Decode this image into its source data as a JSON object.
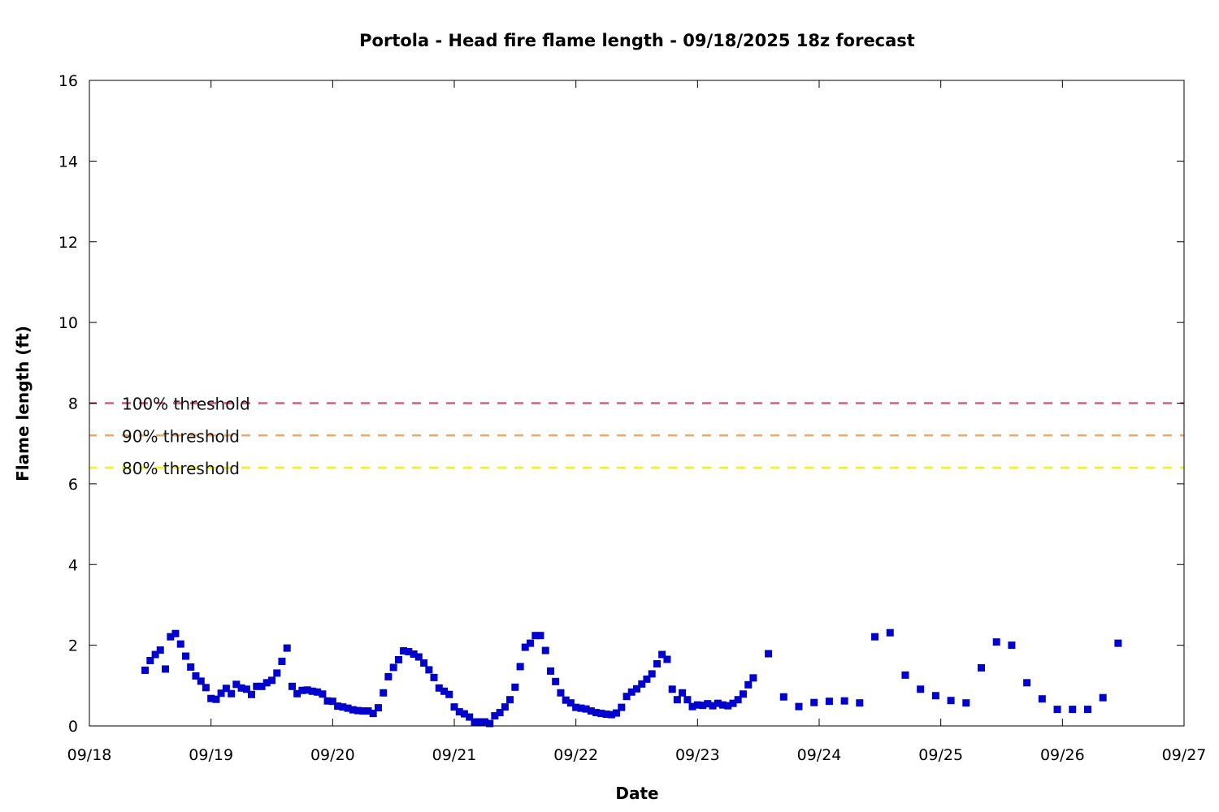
{
  "chart_data": {
    "type": "scatter",
    "title": "Portola - Head fire flame length - 09/18/2025 18z forecast",
    "xlabel": "Date",
    "ylabel": "Flame length (ft)",
    "x_unit": "days",
    "xlim": [
      0,
      9
    ],
    "ylim": [
      0,
      16
    ],
    "x_ticks": [
      {
        "x": 0,
        "label": "09/18"
      },
      {
        "x": 1,
        "label": "09/19"
      },
      {
        "x": 2,
        "label": "09/20"
      },
      {
        "x": 3,
        "label": "09/21"
      },
      {
        "x": 4,
        "label": "09/22"
      },
      {
        "x": 5,
        "label": "09/23"
      },
      {
        "x": 6,
        "label": "09/24"
      },
      {
        "x": 7,
        "label": "09/25"
      },
      {
        "x": 8,
        "label": "09/26"
      },
      {
        "x": 9,
        "label": "09/27"
      }
    ],
    "y_ticks": [
      0,
      2,
      4,
      6,
      8,
      10,
      12,
      14,
      16
    ],
    "grid": false,
    "thresholds": [
      {
        "name": "100% threshold",
        "value": 8.0,
        "color": "#d55e80"
      },
      {
        "name": "90% threshold",
        "value": 7.2,
        "color": "#f0a868"
      },
      {
        "name": "80% threshold",
        "value": 6.4,
        "color": "#f2f21a"
      }
    ],
    "series": [
      {
        "color": "#0000cc",
        "marker": "square",
        "points": [
          [
            0.458,
            1.38
          ],
          [
            0.5,
            1.62
          ],
          [
            0.542,
            1.77
          ],
          [
            0.583,
            1.88
          ],
          [
            0.625,
            1.41
          ],
          [
            0.667,
            2.21
          ],
          [
            0.708,
            2.29
          ],
          [
            0.75,
            2.03
          ],
          [
            0.792,
            1.73
          ],
          [
            0.833,
            1.46
          ],
          [
            0.875,
            1.24
          ],
          [
            0.917,
            1.11
          ],
          [
            0.958,
            0.95
          ],
          [
            1.0,
            0.68
          ],
          [
            1.042,
            0.66
          ],
          [
            1.083,
            0.81
          ],
          [
            1.125,
            0.93
          ],
          [
            1.167,
            0.8
          ],
          [
            1.208,
            1.03
          ],
          [
            1.25,
            0.94
          ],
          [
            1.292,
            0.91
          ],
          [
            1.333,
            0.78
          ],
          [
            1.375,
            0.98
          ],
          [
            1.417,
            0.98
          ],
          [
            1.458,
            1.07
          ],
          [
            1.5,
            1.13
          ],
          [
            1.542,
            1.31
          ],
          [
            1.583,
            1.6
          ],
          [
            1.625,
            1.93
          ],
          [
            1.667,
            0.98
          ],
          [
            1.708,
            0.8
          ],
          [
            1.75,
            0.88
          ],
          [
            1.792,
            0.89
          ],
          [
            1.833,
            0.86
          ],
          [
            1.875,
            0.84
          ],
          [
            1.917,
            0.79
          ],
          [
            1.958,
            0.62
          ],
          [
            2.0,
            0.61
          ],
          [
            2.042,
            0.49
          ],
          [
            2.083,
            0.47
          ],
          [
            2.125,
            0.44
          ],
          [
            2.167,
            0.4
          ],
          [
            2.208,
            0.38
          ],
          [
            2.25,
            0.37
          ],
          [
            2.292,
            0.37
          ],
          [
            2.333,
            0.31
          ],
          [
            2.375,
            0.45
          ],
          [
            2.417,
            0.82
          ],
          [
            2.458,
            1.22
          ],
          [
            2.5,
            1.45
          ],
          [
            2.542,
            1.64
          ],
          [
            2.583,
            1.86
          ],
          [
            2.625,
            1.84
          ],
          [
            2.667,
            1.78
          ],
          [
            2.708,
            1.71
          ],
          [
            2.75,
            1.56
          ],
          [
            2.792,
            1.39
          ],
          [
            2.833,
            1.2
          ],
          [
            2.875,
            0.94
          ],
          [
            2.917,
            0.86
          ],
          [
            2.958,
            0.78
          ],
          [
            3.0,
            0.47
          ],
          [
            3.042,
            0.35
          ],
          [
            3.083,
            0.3
          ],
          [
            3.125,
            0.22
          ],
          [
            3.167,
            0.1
          ],
          [
            3.208,
            0.1
          ],
          [
            3.25,
            0.1
          ],
          [
            3.292,
            0.06
          ],
          [
            3.333,
            0.25
          ],
          [
            3.375,
            0.33
          ],
          [
            3.417,
            0.47
          ],
          [
            3.458,
            0.65
          ],
          [
            3.5,
            0.96
          ],
          [
            3.542,
            1.47
          ],
          [
            3.583,
            1.95
          ],
          [
            3.625,
            2.05
          ],
          [
            3.667,
            2.24
          ],
          [
            3.708,
            2.24
          ],
          [
            3.75,
            1.87
          ],
          [
            3.792,
            1.36
          ],
          [
            3.833,
            1.1
          ],
          [
            3.875,
            0.82
          ],
          [
            3.917,
            0.64
          ],
          [
            3.958,
            0.57
          ],
          [
            4.0,
            0.46
          ],
          [
            4.042,
            0.44
          ],
          [
            4.083,
            0.42
          ],
          [
            4.125,
            0.37
          ],
          [
            4.167,
            0.33
          ],
          [
            4.208,
            0.31
          ],
          [
            4.25,
            0.29
          ],
          [
            4.292,
            0.28
          ],
          [
            4.333,
            0.32
          ],
          [
            4.375,
            0.46
          ],
          [
            4.417,
            0.73
          ],
          [
            4.458,
            0.84
          ],
          [
            4.5,
            0.92
          ],
          [
            4.542,
            1.04
          ],
          [
            4.583,
            1.16
          ],
          [
            4.625,
            1.29
          ],
          [
            4.667,
            1.54
          ],
          [
            4.708,
            1.77
          ],
          [
            4.75,
            1.65
          ],
          [
            4.792,
            0.91
          ],
          [
            4.833,
            0.65
          ],
          [
            4.875,
            0.82
          ],
          [
            4.917,
            0.65
          ],
          [
            4.958,
            0.48
          ],
          [
            5.0,
            0.52
          ],
          [
            5.042,
            0.51
          ],
          [
            5.083,
            0.55
          ],
          [
            5.125,
            0.5
          ],
          [
            5.167,
            0.56
          ],
          [
            5.208,
            0.52
          ],
          [
            5.25,
            0.5
          ],
          [
            5.292,
            0.56
          ],
          [
            5.333,
            0.65
          ],
          [
            5.375,
            0.79
          ],
          [
            5.417,
            1.02
          ],
          [
            5.458,
            1.19
          ],
          [
            5.583,
            1.79
          ],
          [
            5.708,
            0.72
          ],
          [
            5.833,
            0.48
          ],
          [
            5.958,
            0.58
          ],
          [
            6.083,
            0.61
          ],
          [
            6.208,
            0.62
          ],
          [
            6.333,
            0.57
          ],
          [
            6.458,
            2.21
          ],
          [
            6.583,
            2.31
          ],
          [
            6.708,
            1.26
          ],
          [
            6.833,
            0.91
          ],
          [
            6.958,
            0.75
          ],
          [
            7.083,
            0.63
          ],
          [
            7.208,
            0.57
          ],
          [
            7.333,
            1.44
          ],
          [
            7.458,
            2.08
          ],
          [
            7.583,
            2.0
          ],
          [
            7.708,
            1.07
          ],
          [
            7.833,
            0.67
          ],
          [
            7.958,
            0.41
          ],
          [
            8.083,
            0.41
          ],
          [
            8.208,
            0.41
          ],
          [
            8.333,
            0.7
          ],
          [
            8.458,
            2.05
          ]
        ]
      }
    ]
  }
}
